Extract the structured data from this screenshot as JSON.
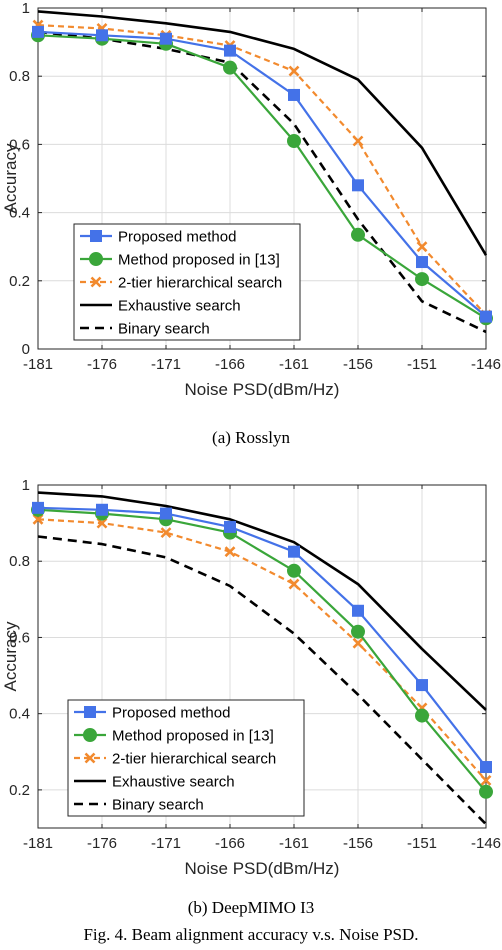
{
  "figure": {
    "subcaptions": [
      "(a)  Rosslyn",
      "(b)  DeepMIMO I3"
    ],
    "caption": "Fig. 4.   Beam alignment accuracy v.s. Noise PSD."
  },
  "colors": {
    "proposed": "#4472e8",
    "method13": "#3aa63a",
    "hierarchical": "#f28a2e",
    "exhaustive": "#000000",
    "binary": "#000000"
  },
  "chart_data": [
    {
      "type": "line",
      "x": [
        -181,
        -176,
        -171,
        -166,
        -161,
        -156,
        -151,
        -146
      ],
      "xticks": [
        "-181",
        "-176",
        "-171",
        "-166",
        "-161",
        "-156",
        "-151",
        "-146"
      ],
      "xlim": [
        -181,
        -146
      ],
      "ylim": [
        0,
        1
      ],
      "yticks": [
        "0",
        "0.2",
        "0.4",
        "0.6",
        "0.8",
        "1"
      ],
      "ytick_values": [
        0,
        0.2,
        0.4,
        0.6,
        0.8,
        1
      ],
      "xlabel": "Noise PSD(dBm/Hz)",
      "ylabel": "Accuracy",
      "grid": true,
      "legend_position": "lower-left",
      "series": [
        {
          "name": "Proposed method",
          "key": "proposed",
          "marker": "square",
          "dash": "solid",
          "values": [
            0.93,
            0.92,
            0.91,
            0.875,
            0.745,
            0.48,
            0.255,
            0.095
          ]
        },
        {
          "name": "Method proposed in [13]",
          "key": "method13",
          "marker": "circle",
          "dash": "solid",
          "values": [
            0.92,
            0.91,
            0.895,
            0.825,
            0.61,
            0.335,
            0.205,
            0.09
          ]
        },
        {
          "name": "2-tier hierarchical search",
          "key": "hierarchical",
          "marker": "x",
          "dash": "dashed",
          "values": [
            0.95,
            0.94,
            0.92,
            0.89,
            0.815,
            0.61,
            0.3,
            0.1
          ]
        },
        {
          "name": "Exhaustive search",
          "key": "exhaustive",
          "marker": "none",
          "dash": "solid",
          "values": [
            0.99,
            0.975,
            0.955,
            0.93,
            0.88,
            0.79,
            0.59,
            0.275
          ]
        },
        {
          "name": "Binary search",
          "key": "binary",
          "marker": "none",
          "dash": "dashed",
          "values": [
            0.93,
            0.91,
            0.88,
            0.84,
            0.66,
            0.38,
            0.14,
            0.05
          ]
        }
      ]
    },
    {
      "type": "line",
      "x": [
        -181,
        -176,
        -171,
        -166,
        -161,
        -156,
        -151,
        -146
      ],
      "xticks": [
        "-181",
        "-176",
        "-171",
        "-166",
        "-161",
        "-156",
        "-151",
        "-146"
      ],
      "xlim": [
        -181,
        -146
      ],
      "ylim": [
        0.1,
        1
      ],
      "yticks": [
        "0.2",
        "0.4",
        "0.6",
        "0.8",
        "1"
      ],
      "ytick_values": [
        0.2,
        0.4,
        0.6,
        0.8,
        1
      ],
      "xlabel": "Noise PSD(dBm/Hz)",
      "ylabel": "Accuracy",
      "grid": true,
      "legend_position": "lower-left",
      "series": [
        {
          "name": "Proposed method",
          "key": "proposed",
          "marker": "square",
          "dash": "solid",
          "values": [
            0.94,
            0.935,
            0.925,
            0.89,
            0.825,
            0.67,
            0.475,
            0.26
          ]
        },
        {
          "name": "Method proposed in [13]",
          "key": "method13",
          "marker": "circle",
          "dash": "solid",
          "values": [
            0.935,
            0.925,
            0.91,
            0.875,
            0.775,
            0.615,
            0.395,
            0.195
          ]
        },
        {
          "name": "2-tier hierarchical search",
          "key": "hierarchical",
          "marker": "x",
          "dash": "dashed",
          "values": [
            0.91,
            0.9,
            0.875,
            0.825,
            0.74,
            0.585,
            0.415,
            0.225
          ]
        },
        {
          "name": "Exhaustive search",
          "key": "exhaustive",
          "marker": "none",
          "dash": "solid",
          "values": [
            0.98,
            0.97,
            0.945,
            0.91,
            0.85,
            0.74,
            0.57,
            0.41
          ]
        },
        {
          "name": "Binary search",
          "key": "binary",
          "marker": "none",
          "dash": "dashed",
          "values": [
            0.865,
            0.845,
            0.81,
            0.735,
            0.61,
            0.45,
            0.28,
            0.11
          ]
        }
      ]
    }
  ]
}
